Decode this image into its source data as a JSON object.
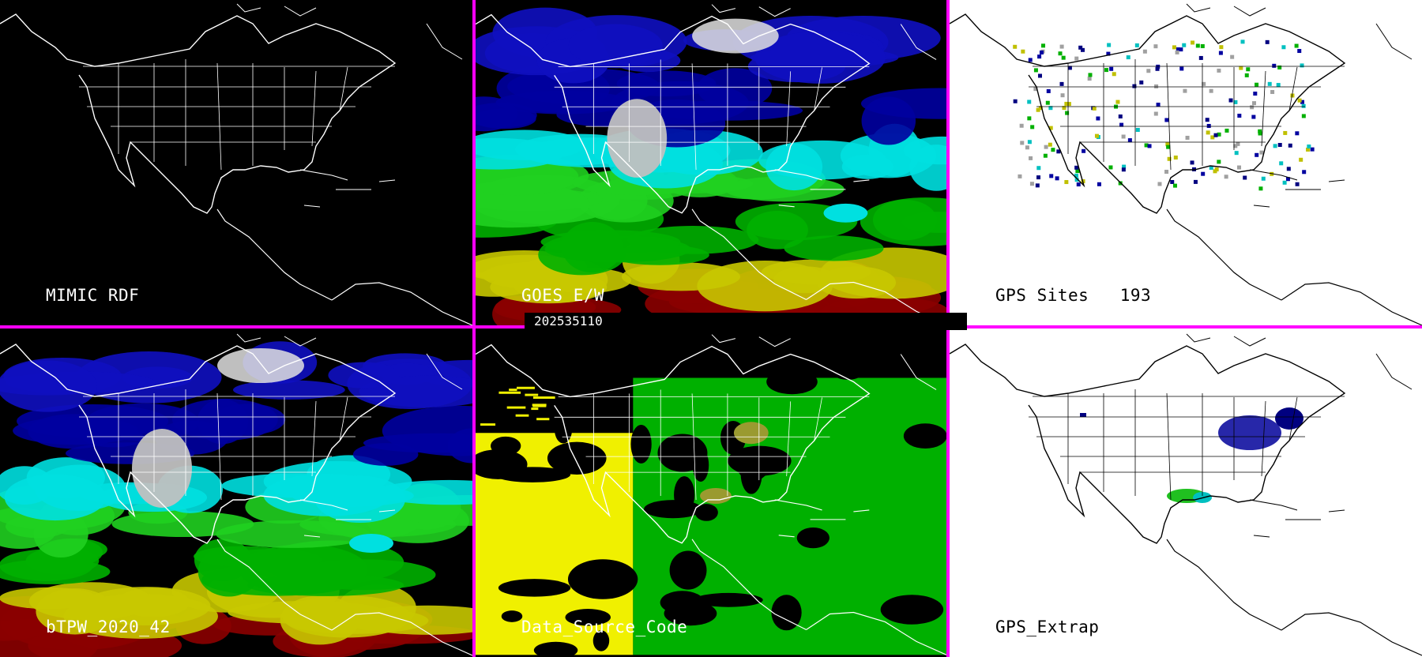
{
  "panels": [
    {
      "id": "mimic",
      "label": "MIMIC RDF",
      "theme": "dark",
      "layer": "none"
    },
    {
      "id": "goes",
      "label": "GOES E/W",
      "theme": "dark",
      "layer": "tpw"
    },
    {
      "id": "gps",
      "label": "GPS Sites   193",
      "theme": "light",
      "layer": "sites"
    },
    {
      "id": "btpw",
      "label": "bTPW_2020_42",
      "theme": "dark",
      "layer": "tpw"
    },
    {
      "id": "dsc",
      "label": "Data_Source_Code",
      "theme": "dark",
      "layer": "source"
    },
    {
      "id": "extrap",
      "label": "GPS_Extrap",
      "theme": "light",
      "layer": "extrap"
    }
  ],
  "timestamp": "202535110",
  "colors": {
    "border": "#ff00ff",
    "dark_background": "#000000",
    "light_background": "#ffffff",
    "tpw_scale": [
      "#8b0000",
      "#cc0000",
      "#c8c800",
      "#f0f000",
      "#00b000",
      "#20d020",
      "#00e0e0",
      "#0000a0",
      "#1010c0",
      "#c0c0c0",
      "#e0e0e0"
    ]
  }
}
